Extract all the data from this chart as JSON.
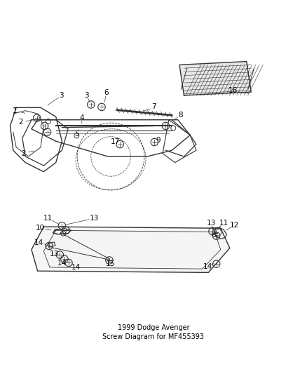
{
  "bg_color": "#ffffff",
  "text_color": "#000000",
  "line_color": "#333333",
  "fig_width": 4.38,
  "fig_height": 5.33,
  "dpi": 100
}
